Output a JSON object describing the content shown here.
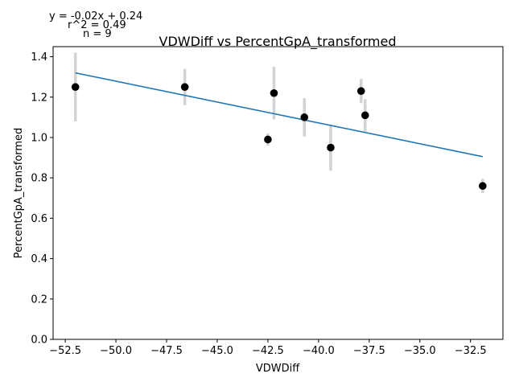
{
  "annotations": {
    "equation": "y = -0.02x + 0.24",
    "r2": "r^2 = 0.49",
    "n": "n = 9"
  },
  "chart_data": {
    "type": "scatter",
    "title": "VDWDiff vs PercentGpA_transformed",
    "xlabel": "VDWDiff",
    "ylabel": "PercentGpA_transformed",
    "xlim": [
      -53.1,
      -30.9
    ],
    "ylim": [
      0,
      1.45
    ],
    "xticks": [
      -52.5,
      -50.0,
      -47.5,
      -45.0,
      -42.5,
      -40.0,
      -37.5,
      -35.0,
      -32.5
    ],
    "yticks": [
      0.0,
      0.2,
      0.4,
      0.6,
      0.8,
      1.0,
      1.2,
      1.4
    ],
    "grid": false,
    "points": [
      {
        "x": -52.0,
        "y": 1.25,
        "err": 0.17
      },
      {
        "x": -46.6,
        "y": 1.25,
        "err": 0.09
      },
      {
        "x": -42.2,
        "y": 1.22,
        "err": 0.13
      },
      {
        "x": -42.5,
        "y": 0.99,
        "err": 0.03
      },
      {
        "x": -40.7,
        "y": 1.1,
        "err": 0.095
      },
      {
        "x": -39.4,
        "y": 0.95,
        "err": 0.115
      },
      {
        "x": -37.9,
        "y": 1.23,
        "err": 0.06
      },
      {
        "x": -37.7,
        "y": 1.11,
        "err": 0.08
      },
      {
        "x": -31.9,
        "y": 0.76,
        "err": 0.035
      }
    ],
    "fit_line": {
      "x": [
        -52.0,
        -31.9
      ],
      "y": [
        1.32,
        0.905
      ]
    },
    "colors": {
      "points": "#000000",
      "errorbars": "#d3d3d3",
      "fit": "#1f77b4"
    }
  }
}
